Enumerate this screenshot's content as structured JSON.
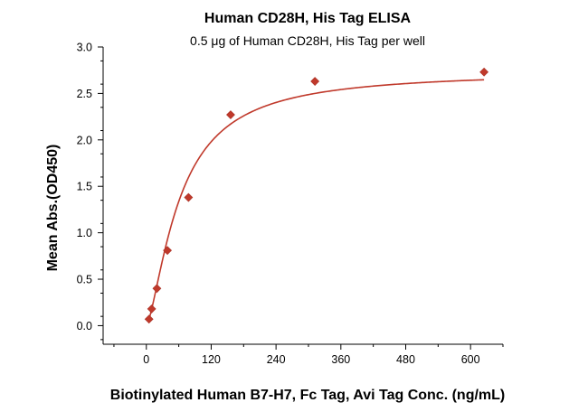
{
  "chart_data": {
    "type": "scatter",
    "title": "Human CD28H, His Tag ELISA",
    "subtitle": "0.5 μg of Human CD28H, His Tag per well",
    "xlabel": "Biotinylated Human B7-H7, Fc Tag, Avi Tag Conc. (ng/mL)",
    "ylabel": "Mean Abs.(OD450)",
    "xlim": [
      -80,
      660
    ],
    "ylim": [
      -0.2,
      3.0
    ],
    "x_ticks": [
      0,
      120,
      240,
      360,
      480,
      600
    ],
    "y_ticks": [
      0.0,
      0.5,
      1.0,
      1.5,
      2.0,
      2.5,
      3.0
    ],
    "x_tick_labels": [
      "0",
      "120",
      "240",
      "360",
      "480",
      "600"
    ],
    "y_tick_labels": [
      "0.0",
      "0.5",
      "1.0",
      "1.5",
      "2.0",
      "2.5",
      "3.0"
    ],
    "grid": false,
    "color": "#c0392b",
    "marker": "diamond",
    "series": [
      {
        "x": [
          4.9,
          9.8,
          19.5,
          39,
          78,
          156,
          312,
          625
        ],
        "y": [
          0.07,
          0.18,
          0.4,
          0.81,
          1.38,
          2.27,
          2.63,
          2.73
        ]
      }
    ],
    "fit_curve": {
      "type": "4PL",
      "bottom": 0.0,
      "top": 2.74,
      "ec50": 62,
      "hill": 1.45
    }
  }
}
